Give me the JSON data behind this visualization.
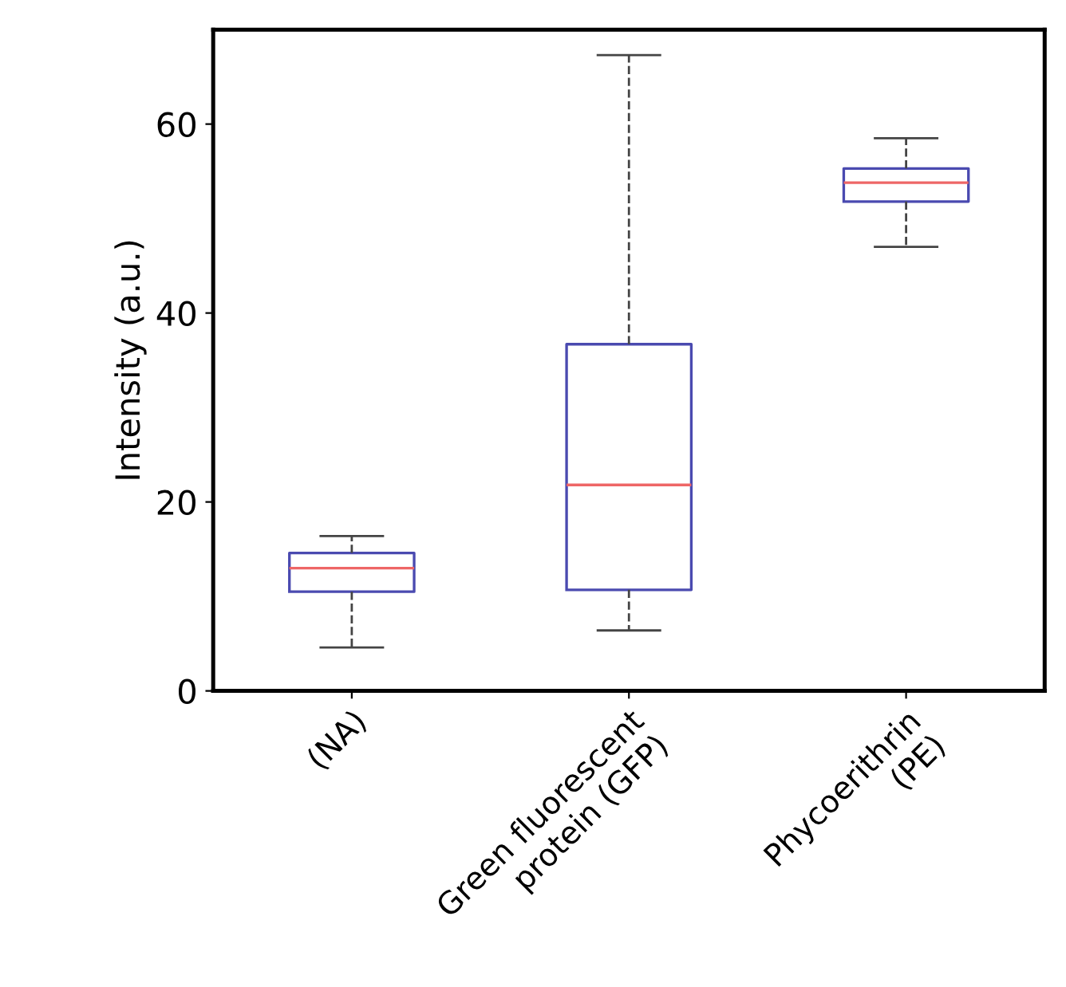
{
  "chart_data": {
    "type": "box",
    "ylabel": "Intensity (a.u.)",
    "categories": [
      "(NA)",
      "Green fluorescent\nprotein (GFP)",
      "Phycoerithrin\n(PE)"
    ],
    "boxes": [
      {
        "low": 4.6,
        "q1": 10.5,
        "median": 13.0,
        "q3": 14.6,
        "high": 16.4
      },
      {
        "low": 6.4,
        "q1": 10.7,
        "median": 21.8,
        "q3": 36.7,
        "high": 67.3
      },
      {
        "low": 47.0,
        "q1": 51.8,
        "median": 53.8,
        "q3": 55.3,
        "high": 58.5
      }
    ],
    "color": "#4a4ab0",
    "ylim": [
      0,
      70
    ],
    "yticks": [
      0,
      20,
      40,
      60
    ],
    "grid": false,
    "line_style": "dashed"
  }
}
